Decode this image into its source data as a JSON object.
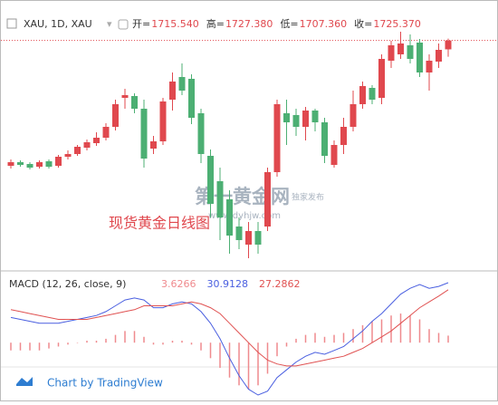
{
  "chart_data": {
    "type": "candlestick",
    "symbol": "XAU, 1D, XAU",
    "ohlc_labels": [
      "开=",
      "高=",
      "低=",
      "收="
    ],
    "ohlc_value_labels": [
      "1715.540",
      "1727.380",
      "1707.360",
      "1725.370"
    ],
    "annotation": "现货黄金日线图",
    "watermark": {
      "name": "第一黄金网",
      "url": "www.dyhjw.com",
      "badge": "独家发布"
    },
    "up_color": "#e0484e",
    "down_color": "#4caf73",
    "open": [
      1587,
      1591,
      1589,
      1586,
      1592,
      1587,
      1597,
      1600,
      1607,
      1612,
      1618,
      1630,
      1662,
      1664,
      1650,
      1606,
      1614,
      1660,
      1685,
      1683,
      1645,
      1598,
      1570,
      1550,
      1520,
      1500,
      1515,
      1520,
      1580,
      1645,
      1643,
      1630,
      1648,
      1635,
      1588,
      1610,
      1630,
      1655,
      1673,
      1662,
      1703,
      1710,
      1720,
      1723,
      1690,
      1702,
      1715.54
    ],
    "high": [
      1594,
      1593,
      1591,
      1593,
      1594,
      1599,
      1604,
      1610,
      1616,
      1624,
      1634,
      1660,
      1672,
      1667,
      1660,
      1620,
      1662,
      1690,
      1700,
      1688,
      1650,
      1605,
      1585,
      1560,
      1530,
      1525,
      1525,
      1585,
      1660,
      1660,
      1650,
      1652,
      1650,
      1640,
      1615,
      1640,
      1670,
      1680,
      1676,
      1710,
      1725,
      1735,
      1732,
      1727,
      1710,
      1722,
      1727.38
    ],
    "low": [
      1584,
      1586,
      1583,
      1584,
      1584,
      1585,
      1594,
      1598,
      1604,
      1609,
      1615,
      1626,
      1650,
      1645,
      1585,
      1600,
      1610,
      1648,
      1665,
      1633,
      1590,
      1530,
      1505,
      1490,
      1495,
      1485,
      1490,
      1515,
      1575,
      1610,
      1620,
      1615,
      1625,
      1590,
      1585,
      1600,
      1625,
      1650,
      1655,
      1655,
      1695,
      1705,
      1700,
      1685,
      1670,
      1695,
      1707.36
    ],
    "close": [
      1591,
      1588,
      1585,
      1591,
      1586,
      1597,
      1600,
      1608,
      1613,
      1618,
      1630,
      1655,
      1665,
      1650,
      1595,
      1614,
      1658,
      1680,
      1670,
      1640,
      1600,
      1545,
      1530,
      1510,
      1505,
      1515,
      1500,
      1580,
      1655,
      1635,
      1630,
      1648,
      1635,
      1598,
      1610,
      1630,
      1655,
      1675,
      1660,
      1705,
      1720,
      1722,
      1705,
      1690,
      1703,
      1715,
      1725.37
    ],
    "macd": {
      "title": "MACD (12, 26, close, 9)",
      "histogram": {
        "color": "#ef8a8e",
        "values": [
          -4,
          -4,
          -4,
          -4,
          -3,
          -2,
          -1,
          0,
          1,
          1,
          2,
          4,
          6,
          6,
          3,
          -1,
          -1,
          1,
          1,
          -1,
          -4,
          -8,
          -13,
          -18,
          -22,
          -24,
          -22,
          -16,
          -7,
          -2,
          2,
          4,
          5,
          3,
          4,
          5,
          7,
          9,
          11,
          12,
          14,
          15,
          14,
          12,
          7,
          5,
          3.6266
        ]
      },
      "macd_line": {
        "color": "#4a5fe0",
        "values": [
          13,
          12,
          11,
          10,
          10,
          10,
          11,
          12,
          13,
          14,
          16,
          19,
          22,
          23,
          22,
          18,
          18,
          20,
          21,
          20,
          16,
          10,
          2,
          -8,
          -17,
          -24,
          -27,
          -25,
          -18,
          -14,
          -10,
          -7,
          -5,
          -6,
          -4,
          -2,
          2,
          6,
          11,
          15,
          20,
          25,
          28,
          30,
          28,
          29,
          30.9128
        ]
      },
      "signal_line": {
        "color": "#e05252",
        "values": [
          17,
          16,
          15,
          14,
          13,
          12,
          12,
          12,
          12,
          13,
          14,
          15,
          16,
          17,
          19,
          19,
          19,
          19,
          20,
          21,
          20,
          18,
          15,
          10,
          5,
          0,
          -5,
          -9,
          -11,
          -12,
          -12,
          -11,
          -10,
          -9,
          -8,
          -7,
          -5,
          -3,
          0,
          3,
          6,
          10,
          14,
          18,
          21,
          24,
          27.2862
        ]
      }
    },
    "footer": "Chart by TradingView"
  }
}
